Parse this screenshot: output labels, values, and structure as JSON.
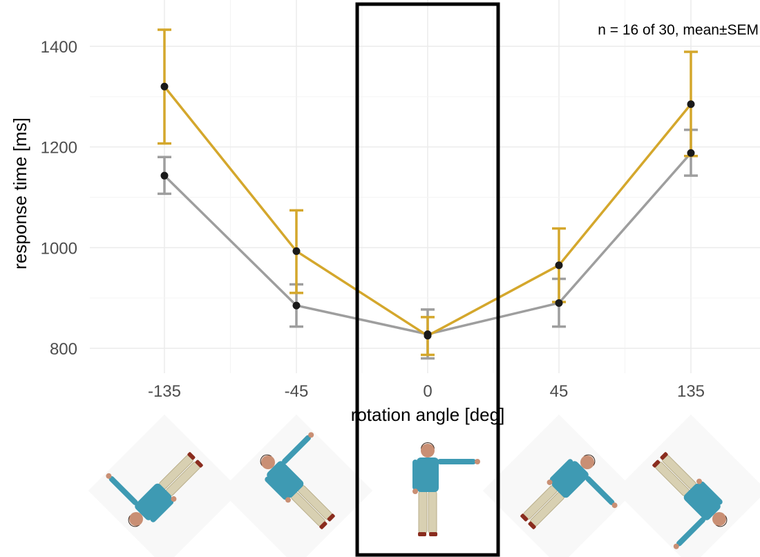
{
  "chart_data": {
    "type": "line",
    "annotation": "n = 16 of 30, mean±SEM",
    "xlabel": "rotation angle [deg]",
    "ylabel": "response time [ms]",
    "categories": [
      "-135",
      "-45",
      "0",
      "45",
      "135"
    ],
    "yticks": [
      800,
      1000,
      1200,
      1400
    ],
    "ylim": [
      725,
      1475
    ],
    "grid": true,
    "colors": {
      "gold": "#d4a72c",
      "grey": "#9e9e9e",
      "point": "#1a1a1a",
      "frame": "#000000"
    },
    "series": [
      {
        "color": "#9e9e9e",
        "values": [
          1143,
          885,
          828,
          890,
          1188
        ],
        "sem_low": [
          1107,
          843,
          780,
          843,
          1143
        ],
        "sem_high": [
          1180,
          927,
          877,
          938,
          1234
        ]
      },
      {
        "color": "#d4a72c",
        "values": [
          1320,
          993,
          825,
          965,
          1285
        ],
        "sem_low": [
          1207,
          910,
          787,
          892,
          1182
        ],
        "sem_high": [
          1433,
          1074,
          862,
          1038,
          1389
        ]
      }
    ],
    "highlighted_category": "0",
    "figure_rotations": [
      -135,
      -45,
      0,
      45,
      135
    ]
  }
}
